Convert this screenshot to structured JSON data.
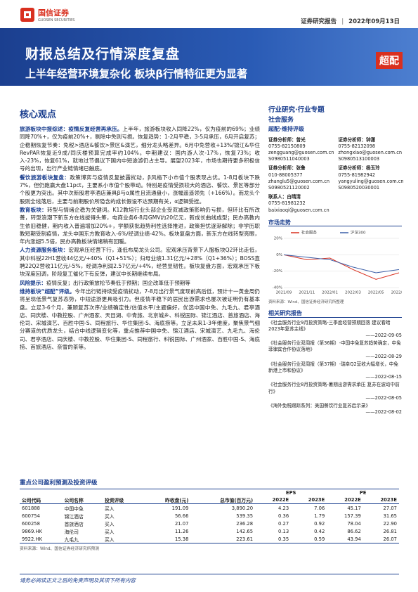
{
  "header": {
    "logo_cn": "国信证券",
    "logo_en": "GUOSEN SECURITIES",
    "report_type": "证券研究报告",
    "date": "2022年09月13日"
  },
  "banner": {
    "title": "财报总结及行情深度复盘",
    "subtitle": "上半年经营环境复杂化 板块β行情特征更为显著",
    "rating": "超配"
  },
  "core": {
    "heading": "核心观点",
    "paragraphs": [
      {
        "lead": "旅游板块中报综述：疫情反复经营再承压。",
        "text": "上半年，旅游板块收入同降22%，仅为疫前的69%；业绩同降70%+，仅为疫前20%+，剔除中免则亏损。恢复趋势：1-2月平稳，3-5月承压，6月开启复苏；企稳期恢复节奏：免税>酒店&餐饮>景区&演艺，细分龙头略差异。6月中免营收+13%/锦江&华住RevPAR恢复近9成/同庆楼预算完成率约104%。中期建议：国内游人次-17%，恢复73%；收入-23%，恢复61%，就地过节倡议下国内中短途游仍占主导。展望2023年，市场也期待更多积极信号的出现，出行产业链情绪已触底。"
      },
      {
        "lead": "餐饮旅游板块复盘：",
        "text": "政策博弈与疫情反复披露扰动，β风格下小市值个股表现占优。1-8月板块下跌7%，但仍跑赢大盘11pct，主要系小市值个股带动。特别是疫情受损较大的酒店、餐饮、景区等部分个股更为突出。其中次新股君亭酒店兼具β与α属性且流通盘小，涨幅遥遥领先（+166%）。而龙头个股则全线落后，主要与前期股价所隐含的成长假设不达预期有关，α逻辑受挫。"
      },
      {
        "lead": "教育板块：",
        "text": "转型与情绪企稳为关键词。K12教培行业头部企业受双减政策影响仍亏损，但环比有所改善，转型浪潮下新东方在线拔得头筹，电商业务6-8月GMV约20亿元，新成长曲线成型；民办高教内生依旧稳健，期内收入普遍增加20%+，学额获批趋势利性选择推进，政策担忧逐渐解除；非学历职教短期受制疫情，龙头中国东方教育收入-6%/经调业绩-42%。板块复盘方面，新东方在线转型亮眼，年内涨超5.5倍，民办高教板块情绪稍有回暖。"
      },
      {
        "lead": "人力资源服务板块：",
        "text": "宏观承压经营下行，逢低布局龙头公司。宏观承压背景下人服板块Q2环比走低，其中科锐22H1营收44亿元/+40%（Q1+51%）；归母业绩1.31亿元/+28%（Q1+36%）；BOSS直聘22Q2营收11亿元/-5%，经调净利润2.57亿元/+4%，经营显韧性。板块复盘方面，宏观承压下板块深度回调，阶段复工催化下有反弹，建议中长期继续布局。"
      },
      {
        "lead": "风险提示：",
        "text": "疫情反复；出行政策放松节奏低于预期；国企改革低于预期等"
      },
      {
        "lead": "维持板块“超配”评级。",
        "text": "今年出行链持续受疫情扰动，7-8月出行景气度现前高后低，预计十一黄金周仍将呈现低景气复苏态势，中短途游更具吸引力。但疫情平稳下的居民出游需求也屡次被证明仍有基本盘。立足3-6个月，兼顾复苏次序/业绩确定性/估值水平/主题偏好，优选中国中免、九毛九、君亭酒店、同庆楼、中教控股、广州酒家、天目湖、中青旅、北京城乡、科锐国际、锦江酒店、首旅酒店、海伦司、宋城演艺、百胜中国-S、同程旅行、华住集团-S、海底捞等。立足未来1-3年维度，聚焦景气细分赛道的优质龙头，结合中线逻辑变化等，重点推荐中国中免、锦江酒店、宋城演艺、九毛九、海伦司、君亭酒店、同庆楼、中教控股、华住集团-S、同程旅行、科锐国际、广州酒家、百胜中国-S、海底捞、首旅酒店、奈雪的茶等。"
      }
    ]
  },
  "sidebar": {
    "category": "行业研究·行业专题",
    "industry": "社会服务",
    "rating": "超配·维持评级",
    "analysts": [
      {
        "role": "证券分析师：曾光",
        "phone": "0755-82150809",
        "email": "zengguang@guosen.com.cn",
        "license": "S0980511040003"
      },
      {
        "role": "证券分析师：钟潇",
        "phone": "0755-82132098",
        "email": "zhongxiao@guosen.com.cn",
        "license": "S0980513100003"
      },
      {
        "role": "证券分析师：张鲁",
        "phone": "010-88005377",
        "email": "zhanglu5@guosen.com.cn",
        "license": "S0980521120002"
      },
      {
        "role": "证券分析师：杨玉玲",
        "phone": "0755-81982942",
        "email": "yangyuling@guosen.com.cn",
        "license": "S0980520030001"
      },
      {
        "role": "联系人：白晴清",
        "phone": "0755-81981232",
        "email": "baixiaoqi@guosen.com.cn"
      }
    ],
    "chart_heading": "市场走势",
    "chart_source": "资料来源：Wind、国信证券经济研究所整理",
    "related_heading": "相关研究报告",
    "related": [
      {
        "title": "《社会服务行业9月投资策略-三季度经营预期回落 建议看暗2023年复苏主线》",
        "date": "——2022-09-05"
      },
      {
        "title": "《社会服务行业双周报（第36期）-中国中免复苏趋势确定，中免菲律宾合作协议落地》",
        "date": "——2022-08-29"
      },
      {
        "title": "《社会服务行业双周报（第37期）-瑞幸Q2营收大幅增长，中免新港上市和协议》",
        "date": "——2022-08-15"
      },
      {
        "title": "《社会服务行业8月投资策略-暑期出游需求承压 复苏在波动中前行》",
        "date": "——2022-08-05"
      },
      {
        "title": "《海外免税跟踪系列：美国餐饮行业复苏启示录》",
        "date": "——2022-08-02"
      }
    ]
  },
  "market_chart": {
    "type": "line",
    "categories": [
      "2021/09",
      "2021/11",
      "2022/01",
      "2022/03",
      "2022/05",
      "2022/07"
    ],
    "series": [
      {
        "name": "社会服务",
        "color": "#d9301f",
        "values": [
          0,
          -6,
          -4,
          -18,
          -30,
          -22
        ]
      },
      {
        "name": "沪深300",
        "color": "#3b5fa8",
        "values": [
          0,
          -3,
          -6,
          -15,
          -22,
          -18
        ]
      }
    ],
    "ylim": [
      -40,
      20
    ],
    "yticks": [
      {
        "value": -40,
        "label": "-40%"
      },
      {
        "value": -20,
        "label": "-20%"
      },
      {
        "value": 0,
        "label": "0%"
      },
      {
        "value": 20,
        "label": "20%"
      }
    ]
  },
  "table": {
    "title": "重点公司盈利预测及投资评级",
    "groups": [
      "EPS",
      "PE"
    ],
    "columns": [
      "公司代码",
      "公司名称",
      "投资评级",
      "昨收盘(元)",
      "总市值(百万元)",
      "2022E",
      "2023E",
      "2022E",
      "2023E"
    ],
    "rows": [
      [
        "601888",
        "中国中免",
        "买入",
        "191.09",
        "3,890.20",
        "4.23",
        "7.06",
        "45.17",
        "27.07"
      ],
      [
        "600754",
        "锦江酒店",
        "买入",
        "56.66",
        "539.35",
        "0.36",
        "1.79",
        "157.39",
        "31.65"
      ],
      [
        "600258",
        "首旅酒店",
        "买入",
        "21.07",
        "236.28",
        "0.27",
        "0.92",
        "78.04",
        "22.90"
      ],
      [
        "9869.HK",
        "海伦司",
        "买入",
        "11.26",
        "142.65",
        "0.13",
        "0.42",
        "86.62",
        "26.81"
      ],
      [
        "9922.HK",
        "九毛九",
        "买入",
        "15.38",
        "223.61",
        "0.35",
        "0.59",
        "43.94",
        "26.07"
      ]
    ],
    "source": "资料来源：Wind、国信证券经济研究所预测"
  },
  "footer": "请务必阅读正文之后的免责声明及其项下所有内容"
}
